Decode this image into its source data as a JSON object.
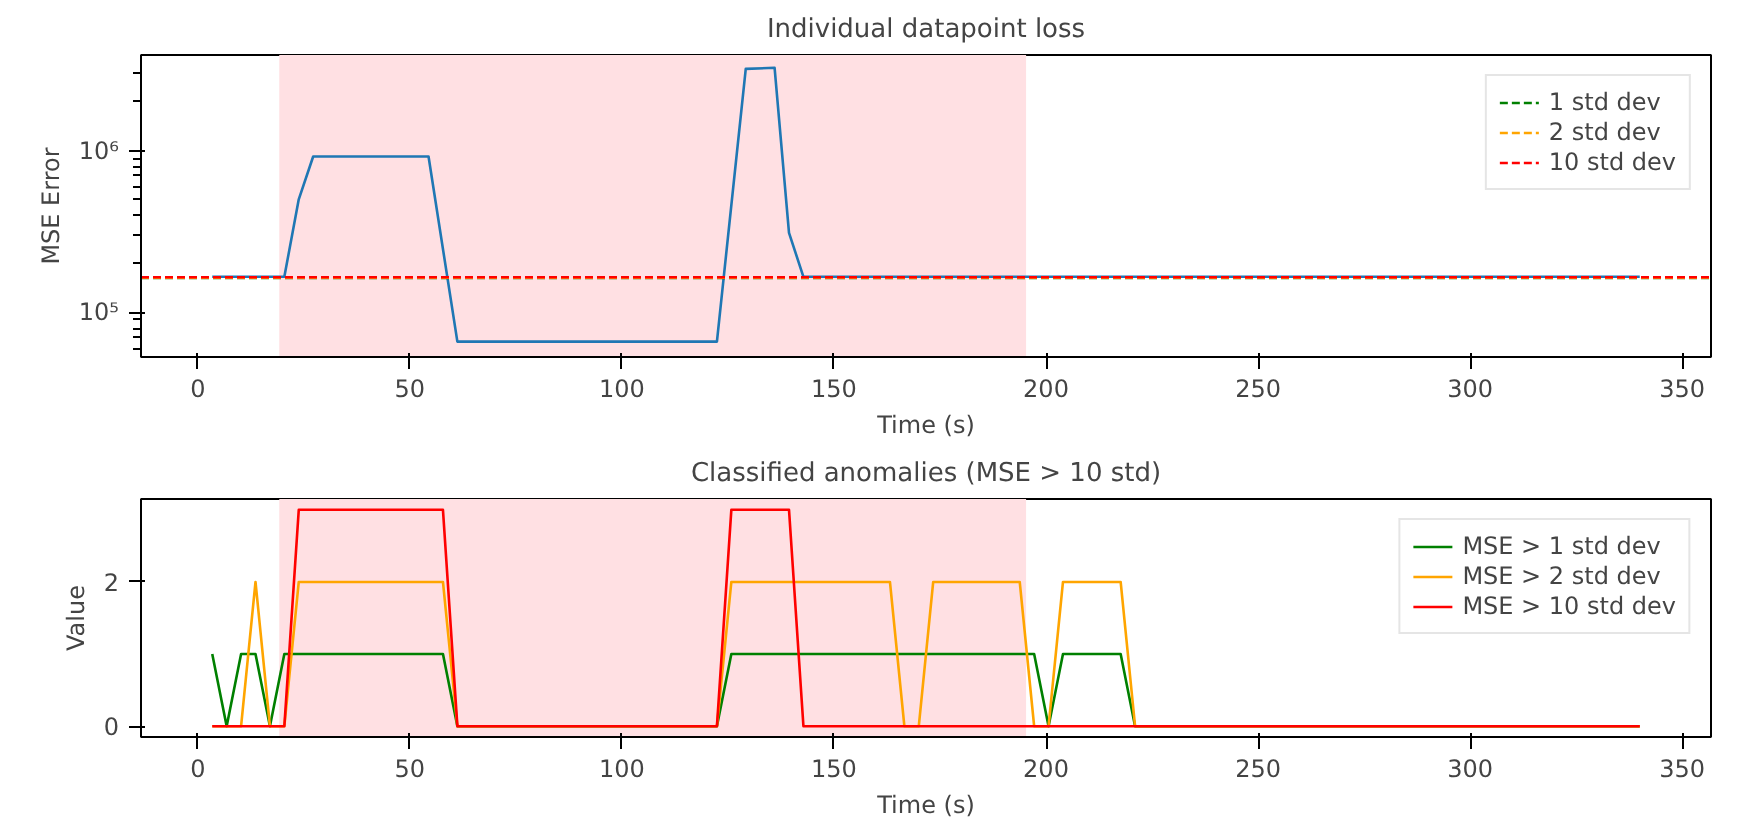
{
  "chart_data": [
    {
      "type": "line",
      "title": "Individual datapoint loss",
      "xlabel": "Time (s)",
      "ylabel": "MSE Error",
      "log": "y",
      "grid": false,
      "legend": "top right",
      "xlim": [
        -13.4,
        356.8
      ],
      "xticks": [
        0,
        50,
        100,
        150,
        200,
        250,
        300,
        350
      ],
      "ylim": [
        53000,
        3900000
      ],
      "yticks": [
        {
          "value": 100000,
          "label": "10⁵"
        },
        {
          "value": 1000000,
          "label": "10⁶"
        }
      ],
      "series": [
        {
          "color": "#1f77b4",
          "x": [
            3.4,
            20.4,
            23.8,
            27.2,
            54.4,
            61.2,
            122.4,
            129.2,
            136,
            139.4,
            142.8,
            340
          ],
          "values": [
            166000,
            166000,
            500000,
            920000,
            920000,
            66000,
            66000,
            3200000,
            3250000,
            310000,
            166000,
            166000
          ]
        }
      ],
      "ref_lines": [
        {
          "axis": "y",
          "value": 163000,
          "label": "1 std dev",
          "color": "#008000",
          "line_style": "dashed"
        },
        {
          "axis": "y",
          "value": 164000,
          "label": "2 std dev",
          "color": "#ffa500",
          "line_style": "dashed"
        },
        {
          "axis": "y",
          "value": 165000,
          "label": "10 std dev",
          "color": "#ff0000",
          "line_style": "dashed"
        }
      ],
      "bands": [
        {
          "axis": "x",
          "from": 19.2,
          "to": 195.3,
          "color": "#ffe0e3"
        }
      ]
    },
    {
      "type": "line",
      "title": "Classified anomalies (MSE > 10 std)",
      "xlabel": "Time (s)",
      "ylabel": "Value",
      "grid": false,
      "legend": "top right",
      "xlim": [
        -13.4,
        356.8
      ],
      "xticks": [
        0,
        50,
        100,
        150,
        200,
        250,
        300,
        350
      ],
      "ylim": [
        -0.15,
        3.15
      ],
      "yticks": [
        0,
        2
      ],
      "series": [
        {
          "name": "MSE > 1 std dev",
          "color": "#008000",
          "x": [
            3.4,
            6.8,
            10.2,
            13.6,
            17,
            20.4,
            57.8,
            61.2,
            122.4,
            125.8,
            197.2,
            200.6,
            204,
            217.6,
            221,
            340
          ],
          "values": [
            1,
            0,
            1,
            1,
            0,
            1,
            1,
            0,
            0,
            1,
            1,
            0,
            1,
            1,
            0,
            0
          ]
        },
        {
          "name": "MSE > 2 std dev",
          "color": "#ffa500",
          "x": [
            3.4,
            10.2,
            13.6,
            17,
            20.4,
            23.8,
            57.8,
            61.2,
            122.4,
            125.8,
            163.2,
            166.6,
            170,
            173.4,
            193.8,
            197.2,
            200.6,
            204,
            217.6,
            221,
            340
          ],
          "values": [
            0,
            0,
            2,
            0,
            0,
            2,
            2,
            0,
            0,
            2,
            2,
            0,
            0,
            2,
            2,
            0,
            0,
            2,
            2,
            0,
            0
          ]
        },
        {
          "name": "MSE > 10 std dev",
          "color": "#ff0000",
          "x": [
            3.4,
            20.4,
            23.8,
            57.8,
            61.2,
            122.4,
            125.8,
            139.4,
            142.8,
            340
          ],
          "values": [
            0,
            0,
            3,
            3,
            0,
            0,
            3,
            3,
            0,
            0
          ]
        }
      ],
      "bands": [
        {
          "axis": "x",
          "from": 19.2,
          "to": 195.3,
          "color": "#ffe0e3"
        }
      ]
    }
  ]
}
